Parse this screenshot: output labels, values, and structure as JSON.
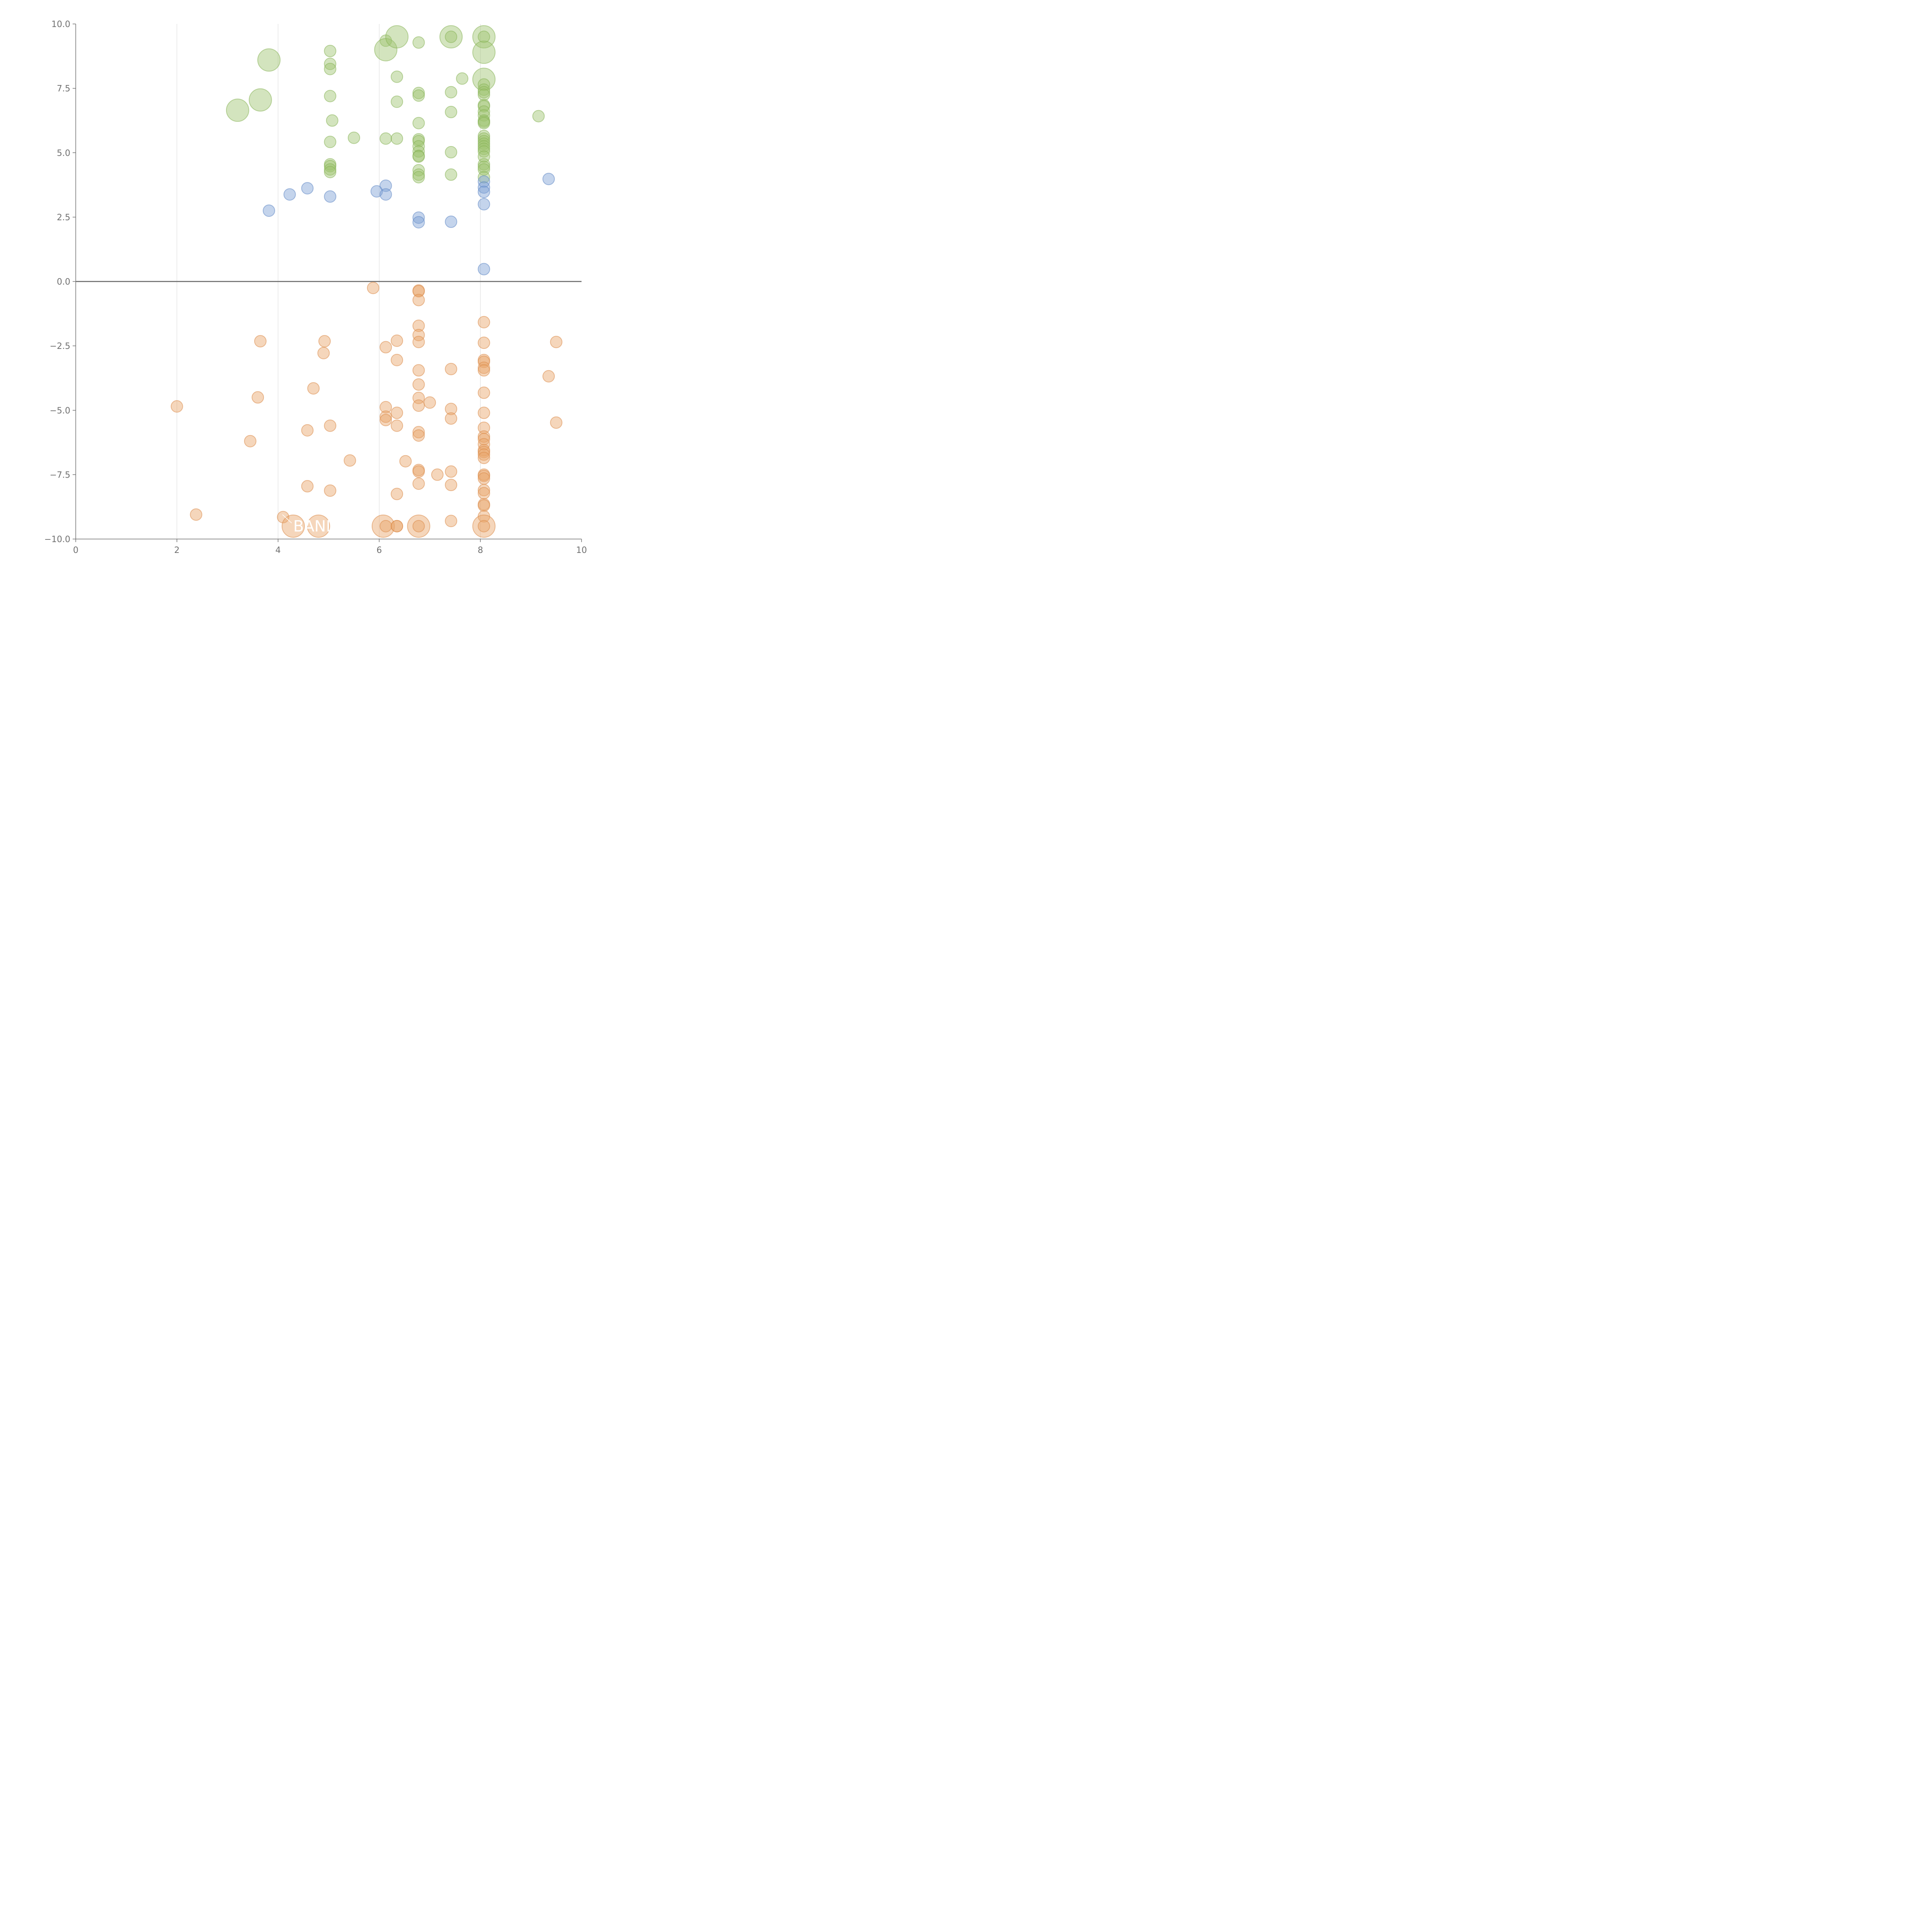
{
  "chart_data": {
    "type": "scatter",
    "xlim": [
      0,
      10
    ],
    "ylim": [
      -10,
      10
    ],
    "x_ticks": [
      "0",
      "2",
      "4",
      "6",
      "8",
      "10"
    ],
    "y_ticks": [
      "10.0",
      "7.5",
      "5.0",
      "2.5",
      "0.0",
      "−2.5",
      "−5.0",
      "−7.5",
      "−10.0"
    ],
    "grid": "vertical lines at x = 2, 4, 6, 8",
    "reference_line": 0,
    "colors": {
      "green": "#9dc46f",
      "green_stroke": "#86b255",
      "blue": "#7da0d4",
      "blue_stroke": "#5f86c4",
      "orange": "#e9a469",
      "orange_stroke": "#db8a48"
    },
    "annotations": [
      {
        "text": "BAND",
        "x": 4.3,
        "y": -9.5
      }
    ],
    "series": [
      {
        "color": "green",
        "points": [
          [
            3.2,
            6.65,
            2
          ],
          [
            3.65,
            7.05,
            2
          ],
          [
            3.82,
            8.6,
            2
          ],
          [
            5.03,
            8.95,
            1
          ],
          [
            5.03,
            8.45,
            1
          ],
          [
            5.03,
            8.25,
            1
          ],
          [
            5.03,
            7.2,
            1
          ],
          [
            5.07,
            6.25,
            1
          ],
          [
            5.03,
            5.42,
            1
          ],
          [
            5.03,
            4.55,
            1
          ],
          [
            5.03,
            4.48,
            1
          ],
          [
            5.03,
            4.35,
            1
          ],
          [
            5.03,
            4.25,
            1
          ],
          [
            5.5,
            5.58,
            1
          ],
          [
            6.13,
            9.35,
            1
          ],
          [
            6.13,
            9.0,
            2
          ],
          [
            6.13,
            5.55,
            1
          ],
          [
            6.35,
            9.5,
            2
          ],
          [
            6.35,
            7.95,
            1
          ],
          [
            6.35,
            6.98,
            1
          ],
          [
            6.35,
            5.55,
            1
          ],
          [
            6.78,
            9.28,
            1
          ],
          [
            6.78,
            7.32,
            1
          ],
          [
            6.78,
            7.22,
            1
          ],
          [
            6.78,
            6.15,
            1
          ],
          [
            6.78,
            5.52,
            1
          ],
          [
            6.78,
            5.45,
            1
          ],
          [
            6.78,
            5.25,
            1
          ],
          [
            6.78,
            5.05,
            1
          ],
          [
            6.78,
            4.88,
            1
          ],
          [
            6.78,
            4.85,
            1
          ],
          [
            6.78,
            4.32,
            1
          ],
          [
            6.78,
            4.15,
            1
          ],
          [
            6.78,
            4.05,
            1
          ],
          [
            7.42,
            9.5,
            2
          ],
          [
            7.42,
            9.5,
            1
          ],
          [
            7.42,
            7.35,
            1
          ],
          [
            7.42,
            6.58,
            1
          ],
          [
            7.42,
            5.02,
            1
          ],
          [
            7.42,
            4.15,
            1
          ],
          [
            7.64,
            7.88,
            1
          ],
          [
            8.07,
            9.5,
            2
          ],
          [
            8.07,
            9.5,
            1
          ],
          [
            8.07,
            8.9,
            2
          ],
          [
            8.07,
            7.85,
            2
          ],
          [
            8.07,
            7.65,
            1
          ],
          [
            8.07,
            7.45,
            1
          ],
          [
            8.07,
            7.35,
            1
          ],
          [
            8.07,
            7.25,
            1
          ],
          [
            8.07,
            6.85,
            1
          ],
          [
            8.07,
            6.8,
            1
          ],
          [
            8.07,
            6.6,
            1
          ],
          [
            8.07,
            6.45,
            1
          ],
          [
            8.07,
            6.25,
            1
          ],
          [
            8.07,
            6.2,
            1
          ],
          [
            8.07,
            6.15,
            1
          ],
          [
            8.07,
            5.65,
            1
          ],
          [
            8.07,
            5.55,
            1
          ],
          [
            8.07,
            5.45,
            1
          ],
          [
            8.07,
            5.35,
            1
          ],
          [
            8.07,
            5.25,
            1
          ],
          [
            8.07,
            5.15,
            1
          ],
          [
            8.07,
            5.05,
            1
          ],
          [
            8.07,
            4.85,
            1
          ],
          [
            8.07,
            4.55,
            1
          ],
          [
            8.07,
            4.45,
            1
          ],
          [
            8.07,
            4.35,
            1
          ],
          [
            8.07,
            4.05,
            1
          ],
          [
            9.15,
            6.42,
            1
          ]
        ]
      },
      {
        "color": "blue",
        "points": [
          [
            3.82,
            2.75,
            1
          ],
          [
            4.23,
            3.38,
            1
          ],
          [
            4.58,
            3.62,
            1
          ],
          [
            5.03,
            3.3,
            1
          ],
          [
            5.95,
            3.5,
            1
          ],
          [
            6.13,
            3.72,
            1
          ],
          [
            6.13,
            3.38,
            1
          ],
          [
            6.78,
            2.48,
            1
          ],
          [
            6.78,
            2.3,
            1
          ],
          [
            7.42,
            2.32,
            1
          ],
          [
            8.07,
            3.88,
            1
          ],
          [
            8.07,
            3.65,
            1
          ],
          [
            8.07,
            3.48,
            1
          ],
          [
            8.07,
            3.0,
            1
          ],
          [
            8.07,
            0.48,
            1
          ],
          [
            9.35,
            3.98,
            1
          ]
        ]
      },
      {
        "color": "orange",
        "points": [
          [
            2.0,
            -4.85,
            1
          ],
          [
            2.38,
            -9.05,
            1
          ],
          [
            3.45,
            -6.2,
            1
          ],
          [
            3.6,
            -4.5,
            1
          ],
          [
            3.65,
            -2.32,
            1
          ],
          [
            4.1,
            -9.15,
            1
          ],
          [
            4.3,
            -9.5,
            2
          ],
          [
            4.58,
            -5.78,
            1
          ],
          [
            4.58,
            -7.95,
            1
          ],
          [
            4.7,
            -4.15,
            1
          ],
          [
            4.8,
            -9.5,
            2
          ],
          [
            4.9,
            -2.78,
            1
          ],
          [
            4.92,
            -2.32,
            1
          ],
          [
            5.03,
            -5.6,
            1
          ],
          [
            5.03,
            -8.12,
            1
          ],
          [
            5.42,
            -6.95,
            1
          ],
          [
            5.88,
            -0.25,
            1
          ],
          [
            6.08,
            -9.5,
            2
          ],
          [
            6.13,
            -2.55,
            1
          ],
          [
            6.13,
            -4.88,
            1
          ],
          [
            6.13,
            -5.25,
            1
          ],
          [
            6.13,
            -5.38,
            1
          ],
          [
            6.13,
            -9.5,
            1
          ],
          [
            6.35,
            -2.3,
            1
          ],
          [
            6.35,
            -3.05,
            1
          ],
          [
            6.35,
            -5.1,
            1
          ],
          [
            6.35,
            -5.6,
            1
          ],
          [
            6.35,
            -8.25,
            1
          ],
          [
            6.35,
            -9.5,
            1
          ],
          [
            6.35,
            -9.5,
            1
          ],
          [
            6.52,
            -6.98,
            1
          ],
          [
            6.78,
            -0.35,
            1
          ],
          [
            6.78,
            -0.38,
            1
          ],
          [
            6.78,
            -0.72,
            1
          ],
          [
            6.78,
            -1.72,
            1
          ],
          [
            6.78,
            -2.08,
            1
          ],
          [
            6.78,
            -2.35,
            1
          ],
          [
            6.78,
            -3.45,
            1
          ],
          [
            6.78,
            -4.0,
            1
          ],
          [
            6.78,
            -4.52,
            1
          ],
          [
            6.78,
            -4.82,
            1
          ],
          [
            6.78,
            -5.85,
            1
          ],
          [
            6.78,
            -5.98,
            1
          ],
          [
            6.78,
            -7.32,
            1
          ],
          [
            6.78,
            -7.38,
            1
          ],
          [
            6.78,
            -7.85,
            1
          ],
          [
            6.78,
            -9.5,
            2
          ],
          [
            6.78,
            -9.5,
            1
          ],
          [
            7.0,
            -4.7,
            1
          ],
          [
            7.15,
            -7.5,
            1
          ],
          [
            7.42,
            -3.4,
            1
          ],
          [
            7.42,
            -4.95,
            1
          ],
          [
            7.42,
            -5.32,
            1
          ],
          [
            7.42,
            -7.38,
            1
          ],
          [
            7.42,
            -7.9,
            1
          ],
          [
            7.42,
            -9.3,
            1
          ],
          [
            8.07,
            -1.58,
            1
          ],
          [
            8.07,
            -2.38,
            1
          ],
          [
            8.07,
            -3.05,
            1
          ],
          [
            8.07,
            -3.12,
            1
          ],
          [
            8.07,
            -3.35,
            1
          ],
          [
            8.07,
            -3.45,
            1
          ],
          [
            8.07,
            -4.32,
            1
          ],
          [
            8.07,
            -5.1,
            1
          ],
          [
            8.07,
            -5.68,
            1
          ],
          [
            8.07,
            -6.02,
            1
          ],
          [
            8.07,
            -6.12,
            1
          ],
          [
            8.07,
            -6.32,
            1
          ],
          [
            8.07,
            -6.55,
            1
          ],
          [
            8.07,
            -6.62,
            1
          ],
          [
            8.07,
            -6.72,
            1
          ],
          [
            8.07,
            -6.85,
            1
          ],
          [
            8.07,
            -7.5,
            1
          ],
          [
            8.07,
            -7.55,
            1
          ],
          [
            8.07,
            -7.65,
            1
          ],
          [
            8.07,
            -8.1,
            1
          ],
          [
            8.07,
            -8.22,
            1
          ],
          [
            8.07,
            -8.65,
            1
          ],
          [
            8.07,
            -8.7,
            1
          ],
          [
            8.07,
            -9.12,
            1
          ],
          [
            8.07,
            -9.5,
            2
          ],
          [
            8.07,
            -9.5,
            1
          ],
          [
            9.35,
            -3.68,
            1
          ],
          [
            9.5,
            -2.35,
            1
          ],
          [
            9.5,
            -5.48,
            1
          ]
        ]
      }
    ]
  }
}
